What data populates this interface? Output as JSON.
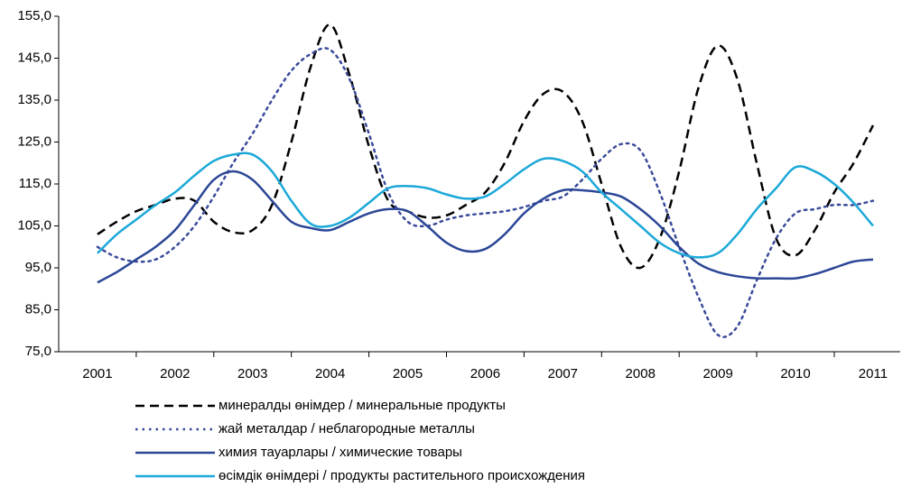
{
  "chart_data": {
    "type": "line",
    "x": [
      2001,
      2001.25,
      2001.5,
      2001.75,
      2002,
      2002.25,
      2002.5,
      2002.75,
      2003,
      2003.25,
      2003.5,
      2003.75,
      2004,
      2004.25,
      2004.5,
      2004.75,
      2005,
      2005.25,
      2005.5,
      2005.75,
      2006,
      2006.25,
      2006.5,
      2006.75,
      2007,
      2007.25,
      2007.5,
      2007.75,
      2008,
      2008.25,
      2008.5,
      2008.75,
      2009,
      2009.25,
      2009.5,
      2009.75,
      2010,
      2010.25,
      2010.5,
      2010.75,
      2011
    ],
    "series": [
      {
        "name": "минералды өнімдер / минеральные продукты",
        "color": "#000000",
        "style": "dashed",
        "values": [
          103,
          106,
          108.5,
          110,
          111.5,
          111,
          106,
          103.5,
          104,
          110,
          125,
          143,
          153,
          141,
          124,
          111,
          108.5,
          107,
          107.5,
          110,
          113,
          120,
          130,
          136.5,
          137,
          130,
          115,
          100,
          95,
          102,
          118,
          138,
          148,
          140,
          120,
          102,
          98,
          104,
          113,
          120,
          129
        ]
      },
      {
        "name": "жай металдар / неблагородные металлы",
        "color": "#3a4a9a",
        "style": "dotted",
        "values": [
          100,
          97.5,
          96.5,
          97,
          100,
          105,
          112,
          120,
          127,
          135,
          142,
          146,
          147,
          140,
          127,
          113,
          106,
          105,
          106.5,
          107.5,
          108,
          108.5,
          109.5,
          111,
          112,
          116,
          121,
          124.5,
          123,
          113,
          100,
          88,
          79,
          81,
          92,
          102,
          108,
          109,
          110,
          110,
          111
        ]
      },
      {
        "name": "химия тауарлары / химические товары",
        "color": "#2b4696",
        "style": "solid",
        "values": [
          91.5,
          94,
          97,
          100,
          104,
          110,
          116,
          118,
          116,
          111,
          106,
          104.5,
          104,
          106,
          108,
          109,
          108.5,
          105,
          101,
          99,
          99.5,
          103,
          108,
          111.5,
          113.5,
          113.5,
          113,
          112,
          109,
          105,
          100,
          96,
          94,
          93,
          92.5,
          92.5,
          92.5,
          93.5,
          95,
          96.5,
          97
        ]
      },
      {
        "name": "өсімдік өнімдері / продукты растительного происхождения",
        "color": "#1ba8d8",
        "style": "solid",
        "values": [
          98.5,
          103,
          106.5,
          110,
          113,
          117,
          120.5,
          122,
          122,
          118,
          111,
          105.5,
          105,
          107,
          110.5,
          114,
          114.5,
          114,
          112.5,
          111.5,
          112,
          115,
          118.5,
          121,
          120.5,
          118,
          113,
          109,
          105,
          101,
          98.5,
          97.5,
          98.5,
          103,
          109,
          114,
          119,
          118,
          115,
          110.5,
          105
        ]
      }
    ],
    "xlim": [
      2000.5,
      2011.35
    ],
    "xticks": [
      2001,
      2002,
      2003,
      2004,
      2005,
      2006,
      2007,
      2008,
      2009,
      2010,
      2011
    ],
    "ylim": [
      75,
      155
    ],
    "yticks": [
      {
        "value": 75,
        "label": "75,0"
      },
      {
        "value": 85,
        "label": "85,0"
      },
      {
        "value": 95,
        "label": "95,0"
      },
      {
        "value": 105,
        "label": "105,0"
      },
      {
        "value": 115,
        "label": "115,0"
      },
      {
        "value": 125,
        "label": "125,0"
      },
      {
        "value": 135,
        "label": "135,0"
      },
      {
        "value": 145,
        "label": "145,0"
      },
      {
        "value": 155,
        "label": "155,0"
      }
    ],
    "legend": "bottom"
  }
}
